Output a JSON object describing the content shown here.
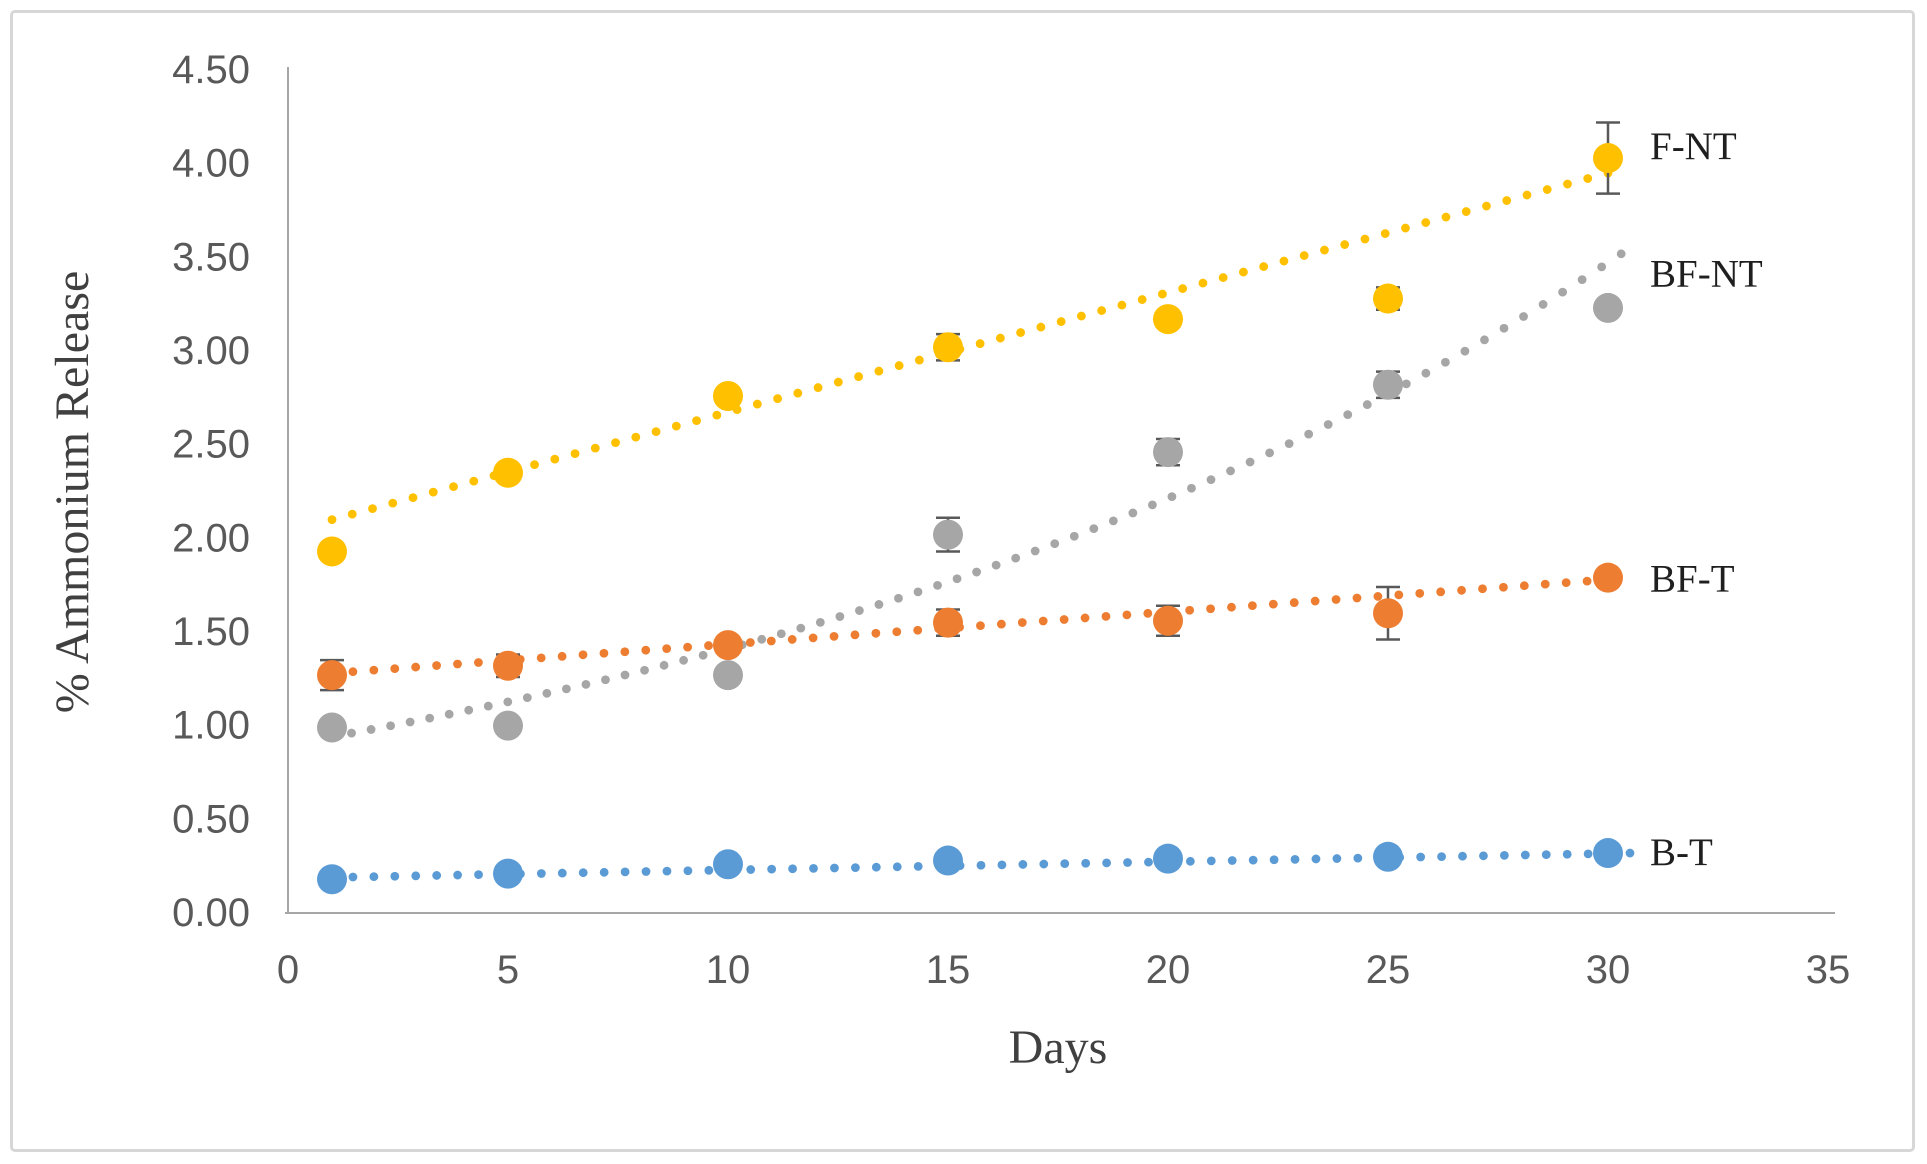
{
  "figure": {
    "background_color": "#ffffff",
    "frame_border_color": "#d7d7d7",
    "axis_line_color": "#a6a6a6",
    "tick_label_color": "#595959",
    "axis_title_color": "#404040",
    "series_label_color": "#1f1f1f",
    "error_bar_color": "#595959"
  },
  "chart_data": {
    "type": "scatter",
    "title": "",
    "xlabel": "Days",
    "ylabel": "% Ammonium Release",
    "grid": false,
    "xlim": [
      0,
      35
    ],
    "ylim": [
      0,
      4.5
    ],
    "x_ticks": [
      "0",
      "5",
      "10",
      "15",
      "20",
      "25",
      "30",
      "35"
    ],
    "x_tick_values": [
      0,
      5,
      10,
      15,
      20,
      25,
      30,
      35
    ],
    "y_ticks": [
      "0.00",
      "0.50",
      "1.00",
      "1.50",
      "2.00",
      "2.50",
      "3.00",
      "3.50",
      "4.00",
      "4.50"
    ],
    "y_tick_values": [
      0,
      0.5,
      1.0,
      1.5,
      2.0,
      2.5,
      3.0,
      3.5,
      4.0,
      4.5
    ],
    "legend_position": "labels-right-of-last-point",
    "x": [
      1,
      5,
      10,
      15,
      20,
      25,
      30
    ],
    "series": [
      {
        "name": "F-NT",
        "color": "#FFC000",
        "values": [
          1.93,
          2.35,
          2.76,
          3.02,
          3.17,
          3.28,
          4.03
        ],
        "errors": [
          0,
          0,
          0,
          0.07,
          0,
          0.06,
          0.19
        ],
        "label_anchor_value": 4.1,
        "trendline": {
          "kind": "linear",
          "style": "dotted",
          "from_day": 1,
          "to_day": 30,
          "from_value": 2.1,
          "to_value": 3.95
        }
      },
      {
        "name": "BF-NT",
        "color": "#A6A6A6",
        "values": [
          0.99,
          1.0,
          1.27,
          2.02,
          2.46,
          2.82,
          3.23
        ],
        "errors": [
          0,
          0,
          0,
          0.09,
          0.07,
          0.07,
          0
        ],
        "label_anchor_value": 3.42,
        "trendline": {
          "kind": "exponential",
          "style": "dotted",
          "a": 0.9,
          "b": 0.045,
          "from_day": 1,
          "to_day": 30.3
        }
      },
      {
        "name": "BF-T",
        "color": "#ED7D31",
        "values": [
          1.27,
          1.32,
          1.43,
          1.55,
          1.56,
          1.6,
          1.79
        ],
        "errors": [
          0.08,
          0.06,
          0,
          0.07,
          0.08,
          0.14,
          0
        ],
        "label_anchor_value": 1.79,
        "trendline": {
          "kind": "linear",
          "style": "dotted",
          "from_day": 1,
          "to_day": 30,
          "from_value": 1.28,
          "to_value": 1.78
        }
      },
      {
        "name": "B-T",
        "color": "#5B9BD5",
        "values": [
          0.18,
          0.21,
          0.26,
          0.28,
          0.29,
          0.3,
          0.32
        ],
        "errors": [
          0,
          0,
          0,
          0,
          0,
          0.04,
          0
        ],
        "label_anchor_value": 0.33,
        "trendline": {
          "kind": "linear",
          "style": "dotted",
          "from_day": 1,
          "to_day": 30.5,
          "from_value": 0.19,
          "to_value": 0.32
        }
      }
    ]
  }
}
